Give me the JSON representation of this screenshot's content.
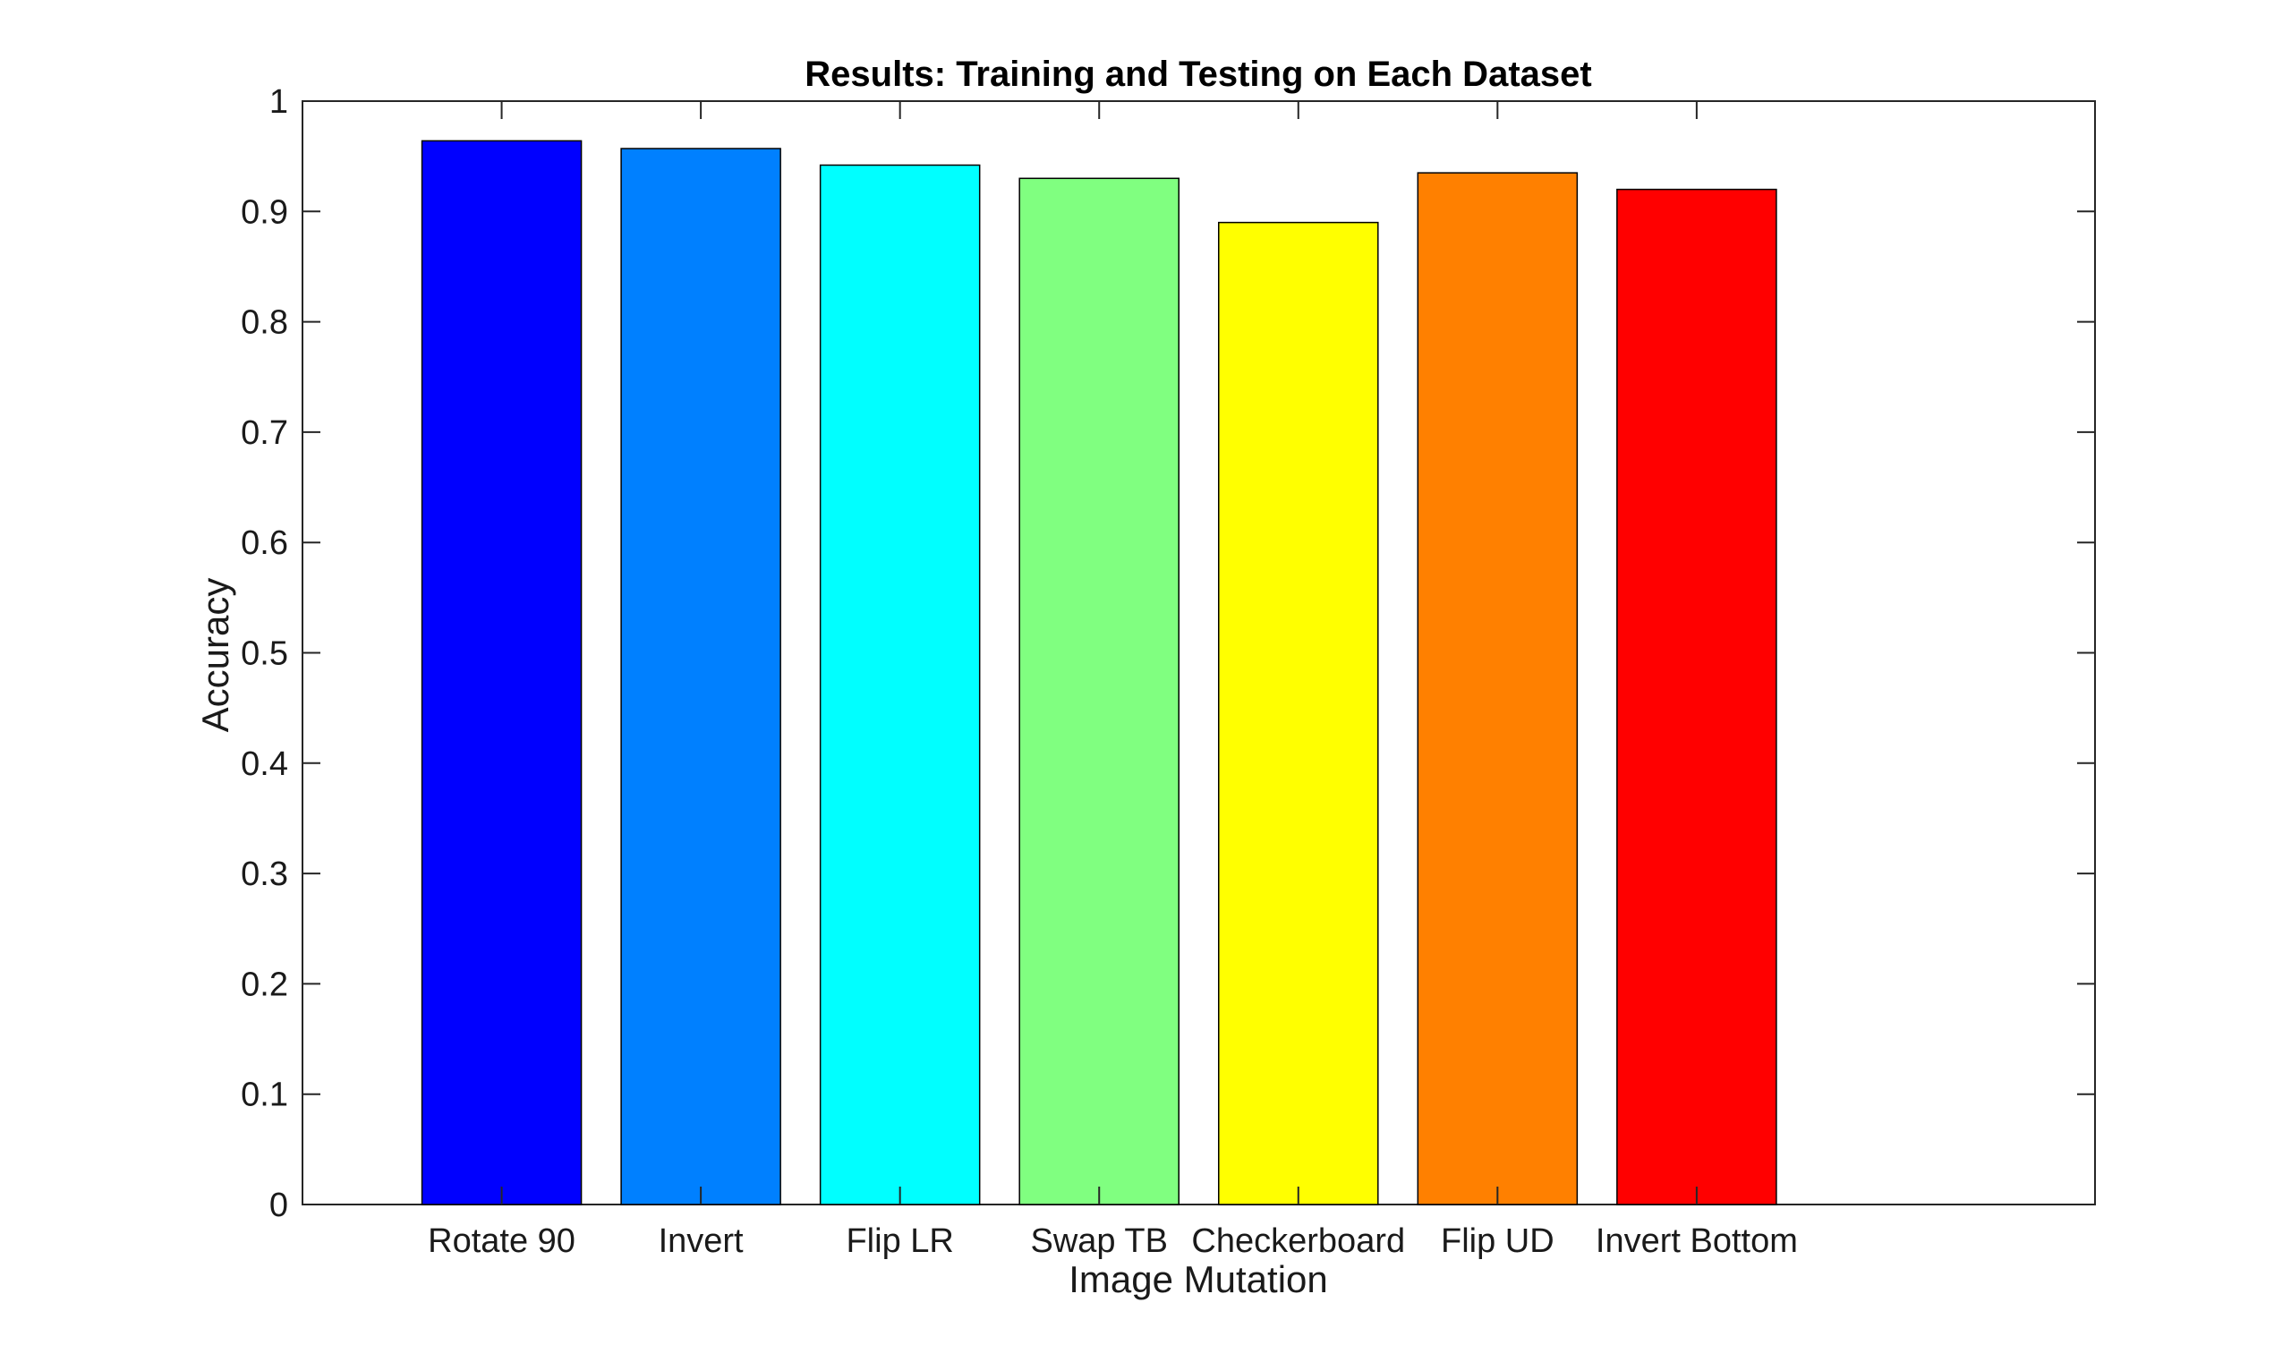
{
  "chart_data": {
    "type": "bar",
    "title": "Results: Training and Testing on Each Dataset",
    "xlabel": "Image Mutation",
    "ylabel": "Accuracy",
    "categories": [
      "Rotate 90",
      "Invert",
      "Flip LR",
      "Swap TB",
      "Checkerboard",
      "Flip UD",
      "Invert Bottom"
    ],
    "values": [
      0.964,
      0.957,
      0.942,
      0.93,
      0.89,
      0.935,
      0.92
    ],
    "colors": [
      "#0000ff",
      "#0080ff",
      "#00ffff",
      "#80ff80",
      "#ffff00",
      "#ff8000",
      "#ff0000"
    ],
    "ylim": [
      0,
      1
    ],
    "yticks": [
      "0",
      "0.1",
      "0.2",
      "0.3",
      "0.4",
      "0.5",
      "0.6",
      "0.7",
      "0.8",
      "0.9",
      "1"
    ],
    "xlim": [
      0,
      9
    ],
    "grid": false,
    "box": true
  }
}
